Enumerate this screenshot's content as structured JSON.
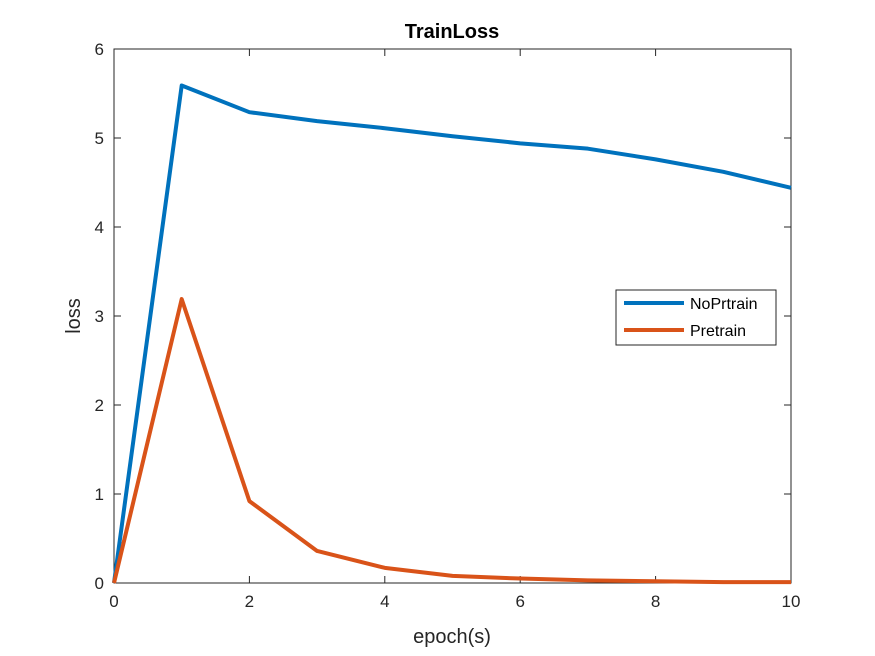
{
  "chart_data": {
    "type": "line",
    "title": "TrainLoss",
    "xlabel": "epoch(s)",
    "ylabel": "loss",
    "xlim": [
      0,
      10
    ],
    "ylim": [
      0,
      6
    ],
    "xticks": [
      0,
      2,
      4,
      6,
      8,
      10
    ],
    "yticks": [
      0,
      1,
      2,
      3,
      4,
      5,
      6
    ],
    "grid": false,
    "legend_position": "east",
    "x": [
      0,
      1,
      2,
      3,
      4,
      5,
      6,
      7,
      8,
      9,
      10
    ],
    "series": [
      {
        "name": "NoPrtrain",
        "color": "#0072BD",
        "values": [
          0,
          5.59,
          5.29,
          5.19,
          5.11,
          5.02,
          4.94,
          4.88,
          4.76,
          4.62,
          4.44
        ]
      },
      {
        "name": "Pretrain",
        "color": "#D95319",
        "values": [
          0,
          3.19,
          0.92,
          0.36,
          0.17,
          0.08,
          0.05,
          0.03,
          0.02,
          0.01,
          0.01
        ]
      }
    ]
  }
}
